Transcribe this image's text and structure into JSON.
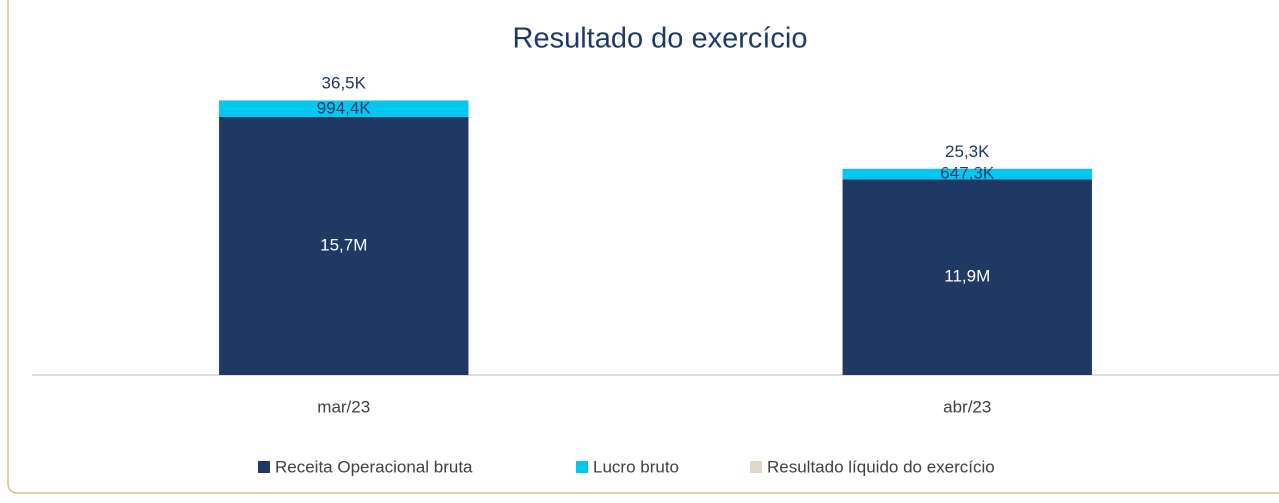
{
  "chart_data": {
    "type": "bar",
    "stacked": true,
    "title": "Resultado do exercício",
    "categories": [
      "mar/23",
      "abr/23"
    ],
    "series": [
      {
        "name": "Receita Operacional bruta",
        "color": "#203864",
        "values": [
          15700000,
          11900000
        ],
        "value_labels": [
          "15,7M",
          "11,9M"
        ]
      },
      {
        "name": "Lucro bruto",
        "color": "#00c8f0",
        "values": [
          994400,
          647300
        ],
        "value_labels": [
          "994,4K",
          "647,3K"
        ]
      },
      {
        "name": "Resultado líquido do exercício",
        "color": "#e0d6c6",
        "values": [
          36500,
          25300
        ],
        "value_labels": [
          "36,5K",
          "25,3K"
        ]
      }
    ],
    "legend": "bottom"
  }
}
